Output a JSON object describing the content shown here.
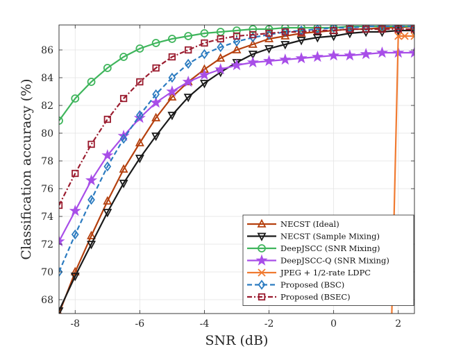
{
  "chart_data": {
    "type": "line",
    "xlabel": "SNR (dB)",
    "ylabel": "Classification accuracy (%)",
    "xlim": [
      -8.5,
      2.5
    ],
    "ylim": [
      67,
      87.8
    ],
    "xticks": [
      -8,
      -6,
      -4,
      -2,
      0,
      2
    ],
    "yticks": [
      68,
      70,
      72,
      74,
      76,
      78,
      80,
      82,
      84,
      86
    ],
    "grid": true,
    "legend_position": "bottom-right",
    "series": [
      {
        "name": "NECST (Ideal)",
        "color": "#b5400e",
        "marker": "triangle-up",
        "line": "solid",
        "x": [
          -8.5,
          -8,
          -7.5,
          -7,
          -6.5,
          -6,
          -5.5,
          -5,
          -4.5,
          -4,
          -3.5,
          -3,
          -2.5,
          -2,
          -1.5,
          -1,
          -0.5,
          0,
          0.5,
          1,
          1.5,
          2,
          2.5
        ],
        "values": [
          67.0,
          70.0,
          72.6,
          75.1,
          77.4,
          79.3,
          81.1,
          82.6,
          83.7,
          84.6,
          85.4,
          86.0,
          86.4,
          86.8,
          87.0,
          87.2,
          87.3,
          87.4,
          87.5,
          87.5,
          87.6,
          87.6,
          87.7
        ]
      },
      {
        "name": "NECST (Sample Mixing)",
        "color": "#1a1a1a",
        "marker": "triangle-down",
        "line": "solid",
        "x": [
          -8.5,
          -8,
          -7.5,
          -7,
          -6.5,
          -6,
          -5.5,
          -5,
          -4.5,
          -4,
          -3.5,
          -3,
          -2.5,
          -2,
          -1.5,
          -1,
          -0.5,
          0,
          0.5,
          1,
          1.5,
          2,
          2.5
        ],
        "values": [
          67.2,
          69.7,
          72.0,
          74.3,
          76.4,
          78.2,
          79.8,
          81.3,
          82.6,
          83.6,
          84.4,
          85.1,
          85.7,
          86.1,
          86.4,
          86.7,
          86.9,
          87.0,
          87.2,
          87.3,
          87.3,
          87.4,
          87.4
        ]
      },
      {
        "name": "DeepJSCC (SNR Mixing)",
        "color": "#3fb55c",
        "marker": "circle",
        "line": "solid",
        "x": [
          -8.5,
          -8,
          -7.5,
          -7,
          -6.5,
          -6,
          -5.5,
          -5,
          -4.5,
          -4,
          -3.5,
          -3,
          -2.5,
          -2,
          -1.5,
          -1,
          -0.5,
          0,
          0.5,
          1,
          1.5,
          2,
          2.5
        ],
        "values": [
          80.9,
          82.5,
          83.7,
          84.7,
          85.5,
          86.1,
          86.5,
          86.8,
          87.0,
          87.2,
          87.3,
          87.4,
          87.5,
          87.5,
          87.6,
          87.6,
          87.6,
          87.6,
          87.7,
          87.7,
          87.7,
          87.7,
          87.7
        ]
      },
      {
        "name": "DeepJSCC-Q (SNR Mixing)",
        "color": "#a84ee8",
        "marker": "star",
        "line": "solid",
        "x": [
          -8.5,
          -8,
          -7.5,
          -7,
          -6.5,
          -6,
          -5.5,
          -5,
          -4.5,
          -4,
          -3.5,
          -3,
          -2.5,
          -2,
          -1.5,
          -1,
          -0.5,
          0,
          0.5,
          1,
          1.5,
          2,
          2.5
        ],
        "values": [
          72.2,
          74.4,
          76.6,
          78.4,
          79.8,
          81.1,
          82.2,
          83.0,
          83.7,
          84.2,
          84.6,
          84.9,
          85.1,
          85.2,
          85.3,
          85.4,
          85.5,
          85.6,
          85.6,
          85.7,
          85.8,
          85.8,
          85.8
        ]
      },
      {
        "name": "JPEG + 1/2-rate LDPC",
        "color": "#f07a30",
        "marker": "x",
        "line": "solid",
        "x": [
          1.8,
          2,
          2.2,
          2.5
        ],
        "values": [
          67.0,
          87.0,
          87.0,
          87.0
        ]
      },
      {
        "name": "Proposed (BSC)",
        "color": "#2b7bc0",
        "marker": "diamond",
        "line": "dashed",
        "x": [
          -8.5,
          -8,
          -7.5,
          -7,
          -6.5,
          -6,
          -5.5,
          -5,
          -4.5,
          -4,
          -3.5,
          -3,
          -2.5,
          -2,
          -1.5,
          -1,
          -0.5,
          0,
          0.5,
          1,
          1.5,
          2,
          2.5
        ],
        "values": [
          70.0,
          72.7,
          75.2,
          77.6,
          79.6,
          81.3,
          82.8,
          84.0,
          85.0,
          85.7,
          86.2,
          86.6,
          86.9,
          87.1,
          87.3,
          87.4,
          87.5,
          87.6,
          87.6,
          87.7,
          87.7,
          87.7,
          87.7
        ]
      },
      {
        "name": "Proposed (BSEC)",
        "color": "#9a1b2e",
        "marker": "square",
        "line": "dashdot",
        "x": [
          -8.5,
          -8,
          -7.5,
          -7,
          -6.5,
          -6,
          -5.5,
          -5,
          -4.5,
          -4,
          -3.5,
          -3,
          -2.5,
          -2,
          -1.5,
          -1,
          -0.5,
          0,
          0.5,
          1,
          1.5,
          2,
          2.5
        ],
        "values": [
          74.8,
          77.1,
          79.2,
          81.0,
          82.5,
          83.7,
          84.7,
          85.5,
          86.0,
          86.5,
          86.8,
          87.0,
          87.1,
          87.2,
          87.3,
          87.3,
          87.4,
          87.4,
          87.5,
          87.5,
          87.5,
          87.5,
          87.5
        ]
      }
    ]
  }
}
